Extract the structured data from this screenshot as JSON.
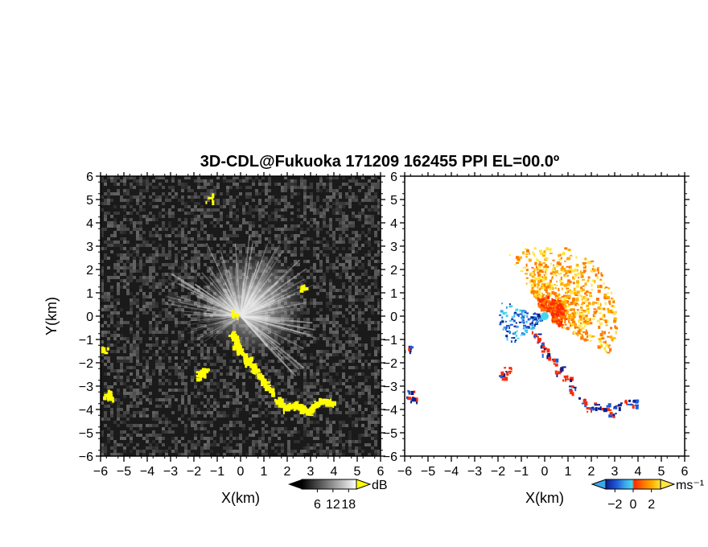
{
  "title": "3D-CDL@Fukuoka 171209 162455 PPI EL=00.0º",
  "colors": {
    "background_left": "#1a1a1a",
    "background_right": "#ffffff",
    "highlight": "#ffff00",
    "velocity_scale": [
      "#0a1f8f",
      "#1f5bd9",
      "#3aa7ea",
      "#45d7ee",
      "#ff2a00",
      "#ff7a00",
      "#ffb000",
      "#ffe640"
    ]
  },
  "chart_data": [
    {
      "type": "heatmap",
      "panel": "reflectivity",
      "xlabel": "X(km)",
      "ylabel": "Y(km)",
      "xlim": [
        -6,
        6
      ],
      "ylim": [
        -6,
        6
      ],
      "xticks": [
        "−6",
        "−5",
        "−4",
        "−3",
        "−2",
        "−1",
        "0",
        "1",
        "2",
        "3",
        "4",
        "5",
        "6"
      ],
      "yticks": [
        "6",
        "5",
        "4",
        "3",
        "2",
        "1",
        "0",
        "−1",
        "−2",
        "−3",
        "−4",
        "−5",
        "−6"
      ],
      "colorbar": {
        "label": "dB",
        "ticks": [
          "6",
          "12",
          "18"
        ],
        "range": [
          0,
          21
        ],
        "colormap": "gray"
      },
      "highlight_band": {
        "color": "yellow",
        "points": [
          [
            -0.4,
            -0.8
          ],
          [
            -0.2,
            -1.1
          ],
          [
            0.0,
            -1.5
          ],
          [
            0.3,
            -1.9
          ],
          [
            0.6,
            -2.3
          ],
          [
            0.9,
            -2.7
          ],
          [
            1.2,
            -3.1
          ],
          [
            1.6,
            -3.6
          ],
          [
            1.9,
            -3.9
          ],
          [
            2.2,
            -3.8
          ],
          [
            2.6,
            -3.9
          ],
          [
            2.9,
            -4.1
          ],
          [
            3.1,
            -3.8
          ],
          [
            3.5,
            -3.6
          ],
          [
            3.8,
            -3.7
          ],
          [
            -1.6,
            -2.3
          ],
          [
            -1.8,
            -2.5
          ],
          [
            -5.9,
            -1.4
          ],
          [
            -5.8,
            -3.3
          ],
          [
            -5.6,
            -3.5
          ],
          [
            -0.3,
            0.1
          ],
          [
            2.6,
            1.2
          ],
          [
            -1.4,
            5.1
          ]
        ]
      }
    },
    {
      "type": "heatmap",
      "panel": "doppler_velocity",
      "xlabel": "X(km)",
      "ylabel": "",
      "xlim": [
        -6,
        6
      ],
      "ylim": [
        -6,
        6
      ],
      "xticks": [
        "−6",
        "−5",
        "−4",
        "−3",
        "−2",
        "−1",
        "0",
        "1",
        "2",
        "3",
        "4",
        "5",
        "6"
      ],
      "yticks": [
        "6",
        "5",
        "4",
        "3",
        "2",
        "1",
        "0",
        "−1",
        "−2",
        "−3",
        "−4",
        "−5",
        "−6"
      ],
      "colorbar": {
        "label": "ms⁻¹",
        "ticks": [
          "−2",
          "0",
          "2"
        ],
        "range": [
          -3,
          3
        ]
      },
      "fan_center": [
        0,
        0
      ],
      "fan_positive_range_km": [
        0.3,
        3.1
      ],
      "fan_direction_deg": [
        -30,
        120
      ]
    }
  ]
}
